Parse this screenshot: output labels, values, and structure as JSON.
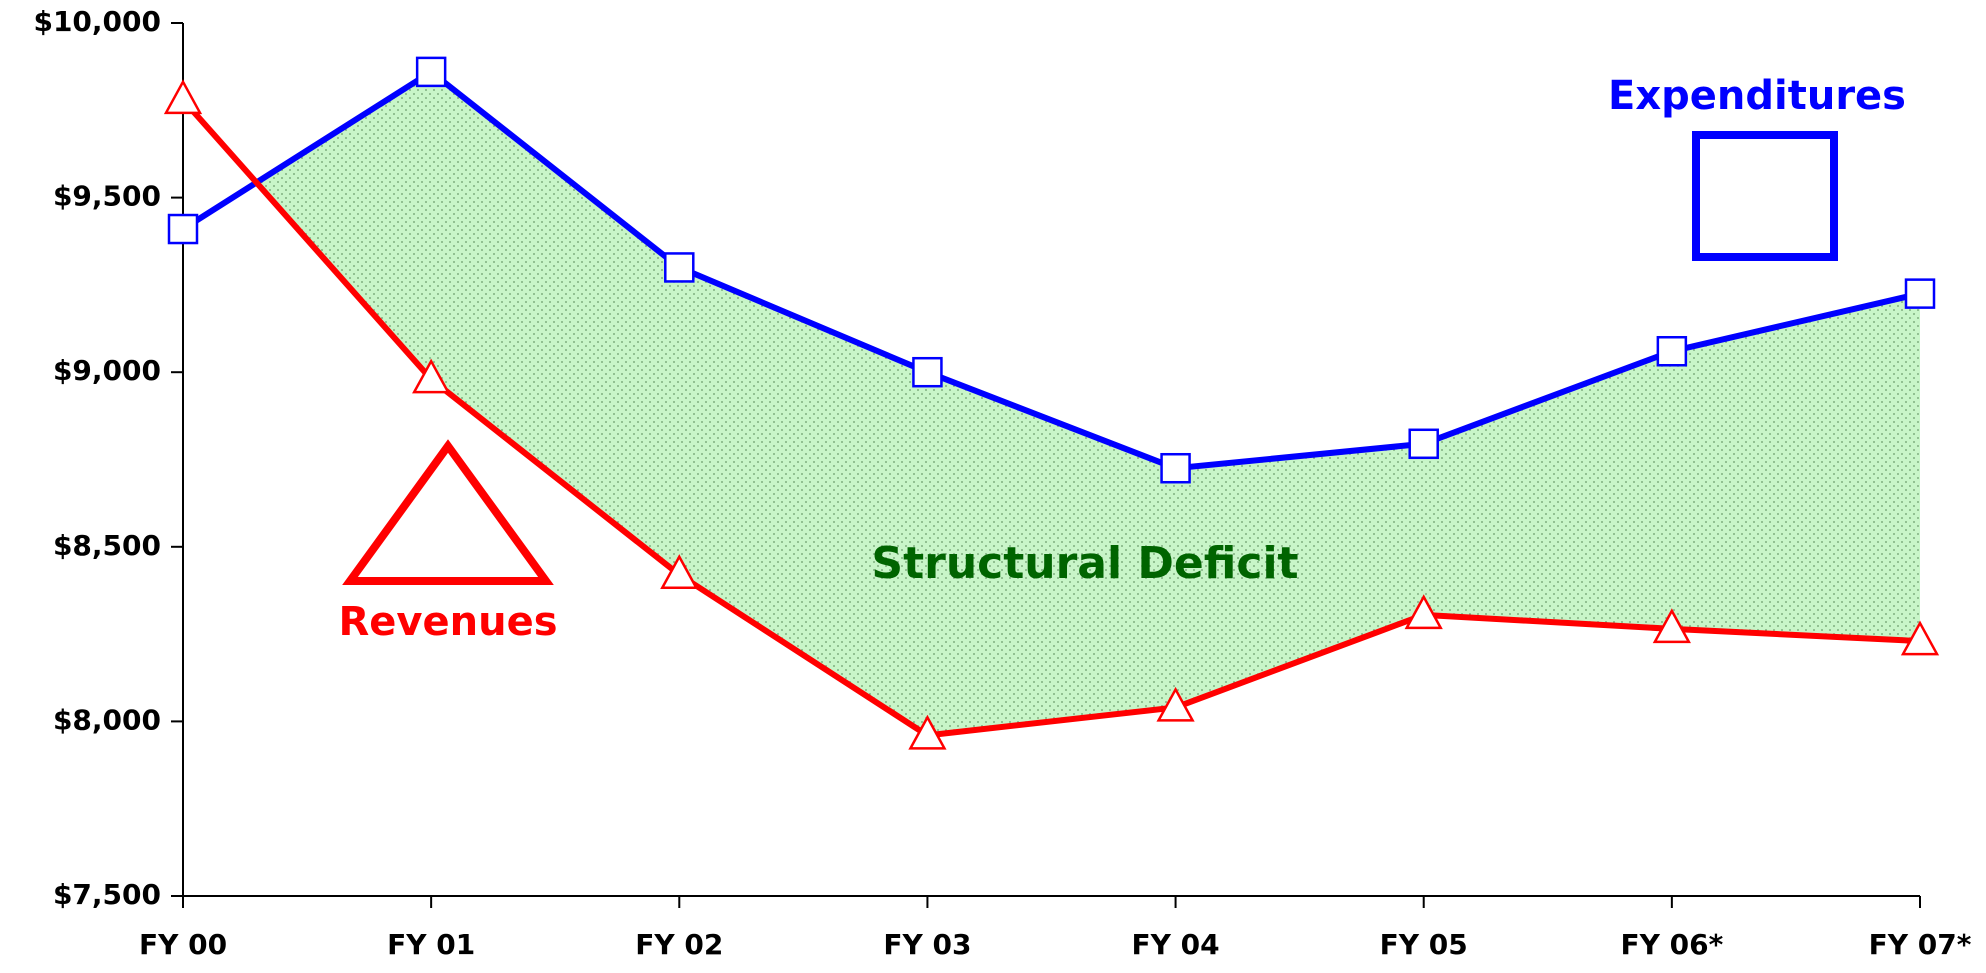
{
  "chart_data": {
    "type": "line",
    "categories": [
      "FY 00",
      "FY 01",
      "FY 02",
      "FY 03",
      "FY 04",
      "FY 05",
      "FY 06*",
      "FY 07*"
    ],
    "series": [
      {
        "name": "Expenditures",
        "color": "#0000ff",
        "marker": "square",
        "values": [
          9410,
          9860,
          9300,
          9000,
          8725,
          8795,
          9060,
          9225
        ]
      },
      {
        "name": "Revenues",
        "color": "#ff0000",
        "marker": "triangle",
        "values": [
          9780,
          8980,
          8420,
          7960,
          8040,
          8305,
          8265,
          8230
        ]
      }
    ],
    "annotation": "Structural Deficit",
    "ylim": [
      7500,
      10000
    ],
    "yticks": [
      {
        "value": 7500,
        "label": "$7,500"
      },
      {
        "value": 8000,
        "label": "$8,000"
      },
      {
        "value": 8500,
        "label": "$8,500"
      },
      {
        "value": 9000,
        "label": "$9,000"
      },
      {
        "value": 9500,
        "label": "$9,500"
      },
      {
        "value": 10000,
        "label": "$10,000"
      }
    ],
    "grid": false
  }
}
